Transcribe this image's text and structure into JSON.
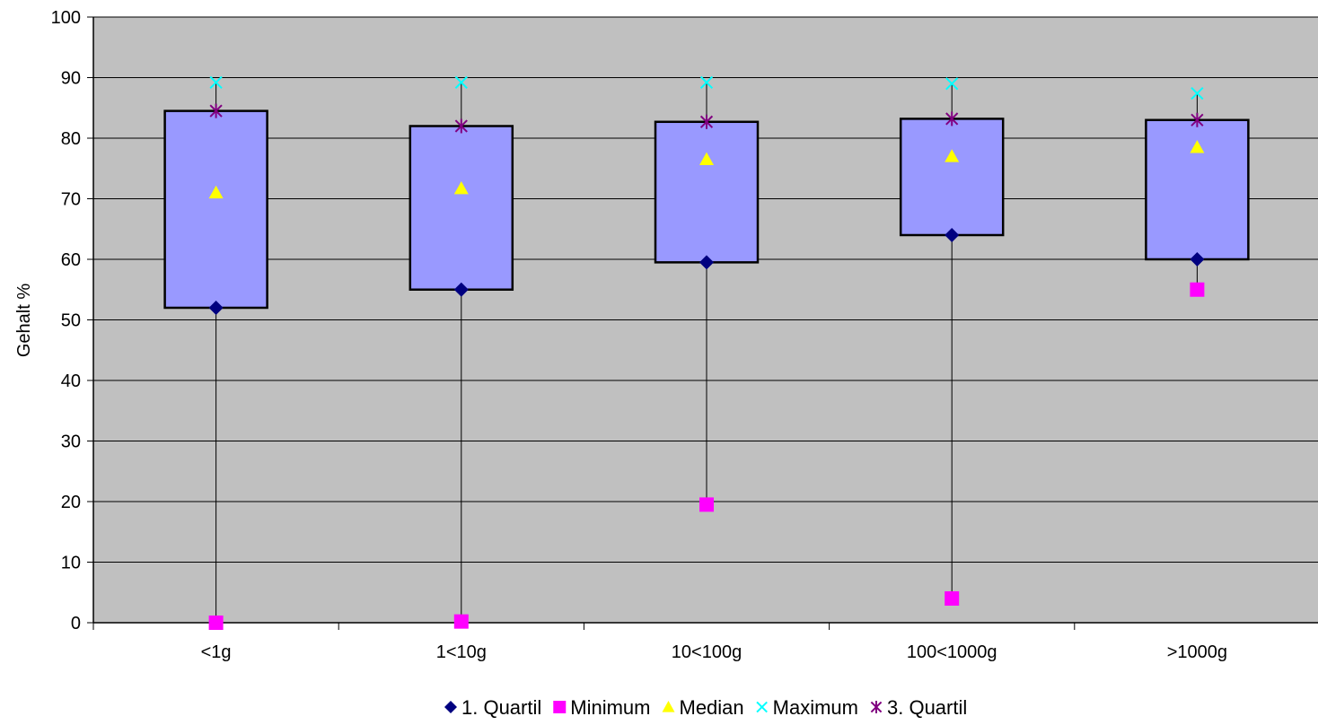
{
  "chart_data": {
    "type": "box",
    "title": "",
    "xlabel": "",
    "ylabel": "Gehalt %",
    "ylim": [
      0,
      100
    ],
    "yticks": [
      0,
      10,
      20,
      30,
      40,
      50,
      60,
      70,
      80,
      90,
      100
    ],
    "categories": [
      "<1g",
      "1<10g",
      "10<100g",
      "100<1000g",
      ">1000g"
    ],
    "series": [
      {
        "name": "1. Quartil",
        "values": [
          52,
          55,
          59.5,
          64,
          60
        ],
        "color": "#000080",
        "marker": "diamond"
      },
      {
        "name": "Minimum",
        "values": [
          0,
          0.2,
          19.5,
          4,
          55
        ],
        "color": "#ff00ff",
        "marker": "square"
      },
      {
        "name": "Median",
        "values": [
          71,
          71.7,
          76.5,
          77,
          78.5
        ],
        "color": "#ffff00",
        "marker": "triangle"
      },
      {
        "name": "Maximum",
        "values": [
          89.2,
          89.2,
          89.2,
          89,
          87.4
        ],
        "color": "#00ffff",
        "marker": "x"
      },
      {
        "name": "3. Quartil",
        "values": [
          84.5,
          82,
          82.7,
          83.2,
          83
        ],
        "color": "#800080",
        "marker": "star"
      }
    ],
    "legend_position": "bottom",
    "grid": true,
    "plot_background": "#c0c0c0",
    "box_fill": "#9999ff"
  }
}
